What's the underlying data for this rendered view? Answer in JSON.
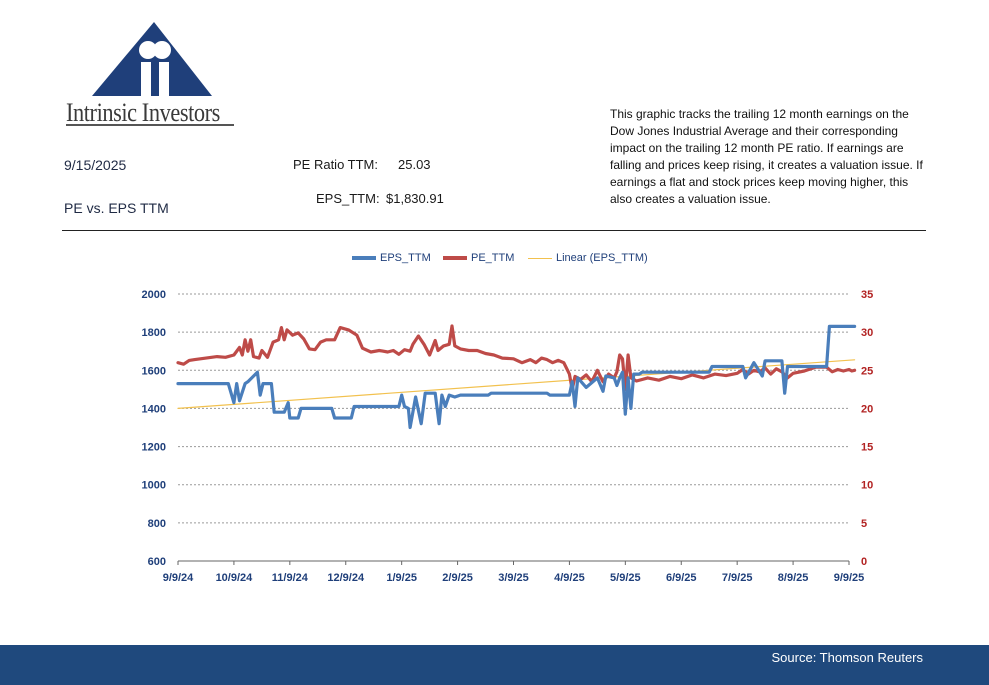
{
  "brand": {
    "name": "Intrinsic Investors"
  },
  "header": {
    "date": "9/15/2025",
    "subtitle": "PE vs. EPS TTM",
    "pe_label": "PE Ratio TTM:",
    "pe_value": "25.03",
    "eps_label": "EPS_TTM:",
    "eps_value": "$1,830.91"
  },
  "description": "This graphic tracks the trailing 12 month earnings on the Dow Jones Industrial Average and their corresponding impact on the trailing 12 month PE ratio.  If earnings are falling and prices keep rising, it creates a valuation issue.  If earnings a flat and stock prices keep moving higher, this also creates a valuation issue.",
  "footer": {
    "source": "Source: Thomson Reuters"
  },
  "colors": {
    "eps": "#4a7ebb",
    "pe": "#be4b48",
    "trend": "#f2c14e",
    "footer_bg": "#1f497d",
    "axis_left": "#1f3f7a",
    "axis_right": "#b22222"
  },
  "chart_data": {
    "type": "line",
    "x_ticks": [
      "9/9/24",
      "10/9/24",
      "11/9/24",
      "12/9/24",
      "1/9/25",
      "2/9/25",
      "3/9/25",
      "4/9/25",
      "5/9/25",
      "6/9/25",
      "7/9/25",
      "8/9/25",
      "9/9/25"
    ],
    "y_left": {
      "min": 600,
      "max": 2000,
      "ticks": [
        600,
        800,
        1000,
        1200,
        1400,
        1600,
        1800,
        2000
      ]
    },
    "y_right": {
      "min": 0,
      "max": 35,
      "ticks": [
        0,
        5,
        10,
        15,
        20,
        25,
        30,
        35
      ]
    },
    "grid": true,
    "legend_position": "top",
    "series": [
      {
        "name": "EPS_TTM",
        "axis": "left",
        "points": [
          [
            0,
            1530
          ],
          [
            0.9,
            1530
          ],
          [
            1.0,
            1430
          ],
          [
            1.05,
            1530
          ],
          [
            1.1,
            1440
          ],
          [
            1.2,
            1530
          ],
          [
            1.25,
            1540
          ],
          [
            1.42,
            1590
          ],
          [
            1.47,
            1470
          ],
          [
            1.52,
            1530
          ],
          [
            1.67,
            1530
          ],
          [
            1.72,
            1380
          ],
          [
            1.9,
            1380
          ],
          [
            1.97,
            1430
          ],
          [
            2.0,
            1350
          ],
          [
            2.15,
            1350
          ],
          [
            2.2,
            1400
          ],
          [
            2.75,
            1400
          ],
          [
            2.8,
            1350
          ],
          [
            3.1,
            1350
          ],
          [
            3.15,
            1410
          ],
          [
            3.95,
            1410
          ],
          [
            4.0,
            1470
          ],
          [
            4.05,
            1410
          ],
          [
            4.12,
            1400
          ],
          [
            4.15,
            1300
          ],
          [
            4.25,
            1460
          ],
          [
            4.35,
            1320
          ],
          [
            4.42,
            1480
          ],
          [
            4.6,
            1480
          ],
          [
            4.67,
            1320
          ],
          [
            4.72,
            1470
          ],
          [
            4.78,
            1410
          ],
          [
            4.85,
            1470
          ],
          [
            4.95,
            1460
          ],
          [
            5.05,
            1470
          ],
          [
            5.55,
            1470
          ],
          [
            5.6,
            1480
          ],
          [
            6.6,
            1480
          ],
          [
            6.65,
            1470
          ],
          [
            7.0,
            1470
          ],
          [
            7.05,
            1540
          ],
          [
            7.1,
            1410
          ],
          [
            7.15,
            1560
          ],
          [
            7.3,
            1510
          ],
          [
            7.5,
            1560
          ],
          [
            7.6,
            1490
          ],
          [
            7.65,
            1570
          ],
          [
            7.8,
            1560
          ],
          [
            7.85,
            1520
          ],
          [
            7.9,
            1560
          ],
          [
            7.95,
            1590
          ],
          [
            8.0,
            1370
          ],
          [
            8.05,
            1560
          ],
          [
            8.1,
            1400
          ],
          [
            8.15,
            1580
          ],
          [
            8.25,
            1580
          ],
          [
            8.3,
            1590
          ],
          [
            9.5,
            1590
          ],
          [
            9.55,
            1620
          ],
          [
            10.1,
            1620
          ],
          [
            10.15,
            1560
          ],
          [
            10.3,
            1640
          ],
          [
            10.45,
            1570
          ],
          [
            10.5,
            1650
          ],
          [
            10.8,
            1650
          ],
          [
            10.85,
            1480
          ],
          [
            10.9,
            1620
          ],
          [
            11.6,
            1620
          ],
          [
            11.65,
            1830
          ],
          [
            12.1,
            1830
          ]
        ]
      },
      {
        "name": "PE_TTM",
        "axis": "right",
        "points": [
          [
            0,
            26.0
          ],
          [
            0.1,
            25.8
          ],
          [
            0.2,
            26.3
          ],
          [
            0.3,
            26.4
          ],
          [
            0.5,
            26.6
          ],
          [
            0.7,
            26.8
          ],
          [
            0.85,
            26.7
          ],
          [
            1.0,
            27.0
          ],
          [
            1.1,
            28.0
          ],
          [
            1.15,
            27.0
          ],
          [
            1.2,
            29.0
          ],
          [
            1.25,
            27.5
          ],
          [
            1.3,
            29.0
          ],
          [
            1.35,
            26.8
          ],
          [
            1.45,
            26.6
          ],
          [
            1.5,
            27.6
          ],
          [
            1.6,
            26.7
          ],
          [
            1.7,
            28.7
          ],
          [
            1.8,
            29.0
          ],
          [
            1.85,
            30.6
          ],
          [
            1.9,
            29.0
          ],
          [
            1.95,
            30.3
          ],
          [
            2.05,
            29.6
          ],
          [
            2.15,
            29.9
          ],
          [
            2.25,
            29.1
          ],
          [
            2.35,
            27.8
          ],
          [
            2.45,
            27.7
          ],
          [
            2.55,
            28.7
          ],
          [
            2.65,
            29.0
          ],
          [
            2.8,
            29.0
          ],
          [
            2.9,
            30.6
          ],
          [
            3.05,
            30.3
          ],
          [
            3.2,
            29.6
          ],
          [
            3.3,
            27.9
          ],
          [
            3.45,
            27.4
          ],
          [
            3.6,
            27.6
          ],
          [
            3.75,
            27.4
          ],
          [
            3.85,
            27.6
          ],
          [
            3.95,
            27.1
          ],
          [
            4.05,
            27.7
          ],
          [
            4.15,
            27.5
          ],
          [
            4.2,
            28.4
          ],
          [
            4.3,
            29.5
          ],
          [
            4.4,
            28.4
          ],
          [
            4.5,
            27.0
          ],
          [
            4.6,
            28.9
          ],
          [
            4.65,
            27.6
          ],
          [
            4.75,
            28.2
          ],
          [
            4.85,
            28.4
          ],
          [
            4.9,
            30.8
          ],
          [
            4.95,
            28.2
          ],
          [
            5.05,
            27.8
          ],
          [
            5.2,
            27.6
          ],
          [
            5.35,
            27.6
          ],
          [
            5.5,
            27.2
          ],
          [
            5.65,
            27.0
          ],
          [
            5.8,
            26.6
          ],
          [
            6.0,
            26.5
          ],
          [
            6.15,
            26.0
          ],
          [
            6.3,
            26.4
          ],
          [
            6.4,
            26.0
          ],
          [
            6.5,
            26.6
          ],
          [
            6.6,
            26.4
          ],
          [
            6.7,
            26.0
          ],
          [
            6.8,
            26.3
          ],
          [
            6.9,
            26.0
          ],
          [
            7.0,
            24.5
          ],
          [
            7.05,
            22.5
          ],
          [
            7.1,
            24.2
          ],
          [
            7.2,
            23.8
          ],
          [
            7.3,
            24.4
          ],
          [
            7.4,
            23.5
          ],
          [
            7.5,
            25.0
          ],
          [
            7.6,
            23.5
          ],
          [
            7.7,
            24.5
          ],
          [
            7.8,
            24.0
          ],
          [
            7.85,
            24.8
          ],
          [
            7.9,
            27.0
          ],
          [
            7.95,
            26.5
          ],
          [
            8.0,
            22.5
          ],
          [
            8.05,
            27.0
          ],
          [
            8.1,
            24.0
          ],
          [
            8.2,
            23.6
          ],
          [
            8.4,
            24.0
          ],
          [
            8.6,
            23.7
          ],
          [
            8.8,
            24.2
          ],
          [
            9.0,
            23.9
          ],
          [
            9.2,
            24.4
          ],
          [
            9.4,
            24.0
          ],
          [
            9.6,
            24.5
          ],
          [
            9.8,
            24.3
          ],
          [
            10.0,
            24.6
          ],
          [
            10.1,
            25.1
          ],
          [
            10.2,
            24.5
          ],
          [
            10.3,
            25.0
          ],
          [
            10.4,
            24.8
          ],
          [
            10.5,
            25.3
          ],
          [
            10.6,
            24.5
          ],
          [
            10.7,
            25.2
          ],
          [
            10.8,
            24.8
          ],
          [
            10.9,
            24.0
          ],
          [
            11.0,
            24.6
          ],
          [
            11.2,
            24.9
          ],
          [
            11.4,
            25.4
          ],
          [
            11.6,
            25.4
          ],
          [
            11.7,
            24.8
          ],
          [
            11.8,
            25.1
          ],
          [
            11.9,
            24.9
          ],
          [
            12.0,
            25.1
          ],
          [
            12.05,
            24.9
          ],
          [
            12.1,
            25.0
          ]
        ]
      },
      {
        "name": "Linear (EPS_TTM)",
        "axis": "left",
        "type": "trend",
        "points": [
          [
            0,
            1400
          ],
          [
            12.1,
            1655
          ]
        ]
      }
    ]
  }
}
